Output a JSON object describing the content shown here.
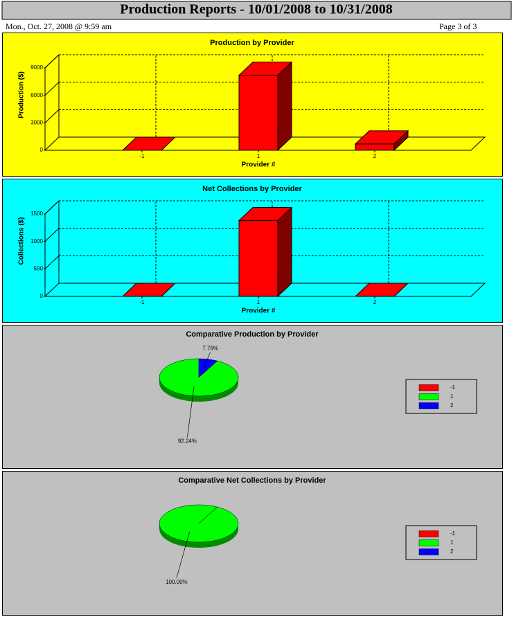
{
  "header": {
    "title": "Production Reports - 10/01/2008 to 10/31/2008",
    "date": "Mon., Oct. 27, 2008 @ 9:59 am",
    "page": "Page 3 of 3"
  },
  "chart_data": [
    {
      "type": "bar",
      "title": "Production by Provider",
      "ylabel": "Production ($)",
      "xlabel": "Provider #",
      "categories": [
        "-1",
        "1",
        "2"
      ],
      "values": [
        0,
        8200,
        690
      ],
      "color": "#ff0000",
      "ylim": [
        0,
        9000
      ],
      "yticks": [
        0,
        3000,
        6000,
        9000
      ],
      "grid": true,
      "background": "#ffff00"
    },
    {
      "type": "bar",
      "title": "Net Collections by Provider",
      "ylabel": "Collections ($)",
      "xlabel": "Provider #",
      "categories": [
        "-1",
        "1",
        "2"
      ],
      "values": [
        0,
        1380,
        0
      ],
      "color": "#ff0000",
      "ylim": [
        0,
        1500
      ],
      "yticks": [
        0,
        500,
        1000,
        1500
      ],
      "grid": true,
      "background": "#00ffff"
    },
    {
      "type": "pie",
      "title": "Comparative Production by Provider",
      "categories": [
        "-1",
        "1",
        "2"
      ],
      "values": [
        0,
        92.24,
        7.76
      ],
      "value_labels": [
        null,
        "92.24%",
        "7.76%"
      ],
      "colors": [
        "#ff0000",
        "#00ff00",
        "#0000ff"
      ],
      "legend": "right",
      "background": "#c0c0c0"
    },
    {
      "type": "pie",
      "title": "Comparative Net Collections by Provider",
      "categories": [
        "-1",
        "1",
        "2"
      ],
      "values": [
        0,
        100,
        0
      ],
      "value_labels": [
        null,
        "100.00%",
        null
      ],
      "colors": [
        "#ff0000",
        "#00ff00",
        "#0000ff"
      ],
      "legend": "right",
      "background": "#c0c0c0"
    }
  ]
}
